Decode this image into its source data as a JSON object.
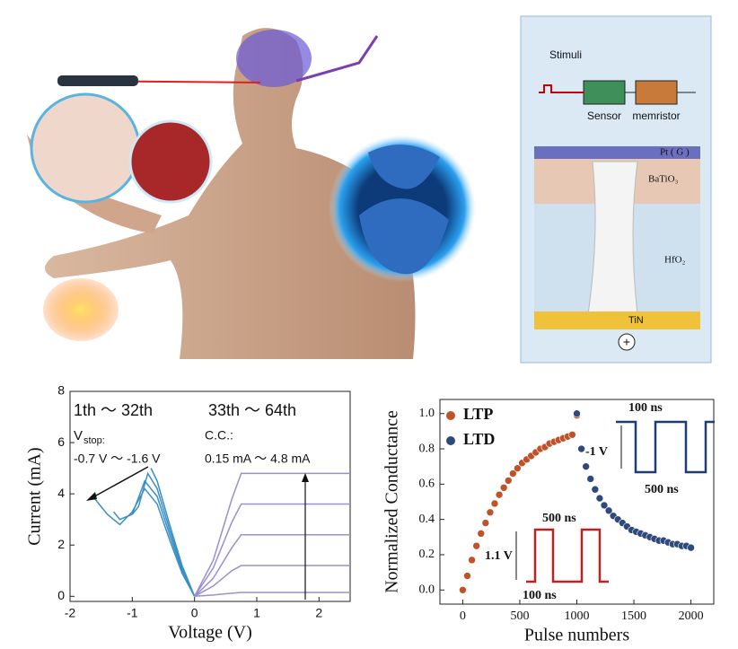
{
  "illustration": {
    "stimuli": "Stimuli",
    "sensor": "Sensor",
    "memristor": "memristor",
    "top_electrode": "Pt ( G )",
    "layer1": "BaTiO₃",
    "layer2": "HfO₂",
    "bottom_electrode": "TiN",
    "polarity": "+"
  },
  "chart_data": [
    {
      "type": "line",
      "xlabel": "Voltage (V)",
      "ylabel": "Current (mA)",
      "xlim": [
        -2,
        2.5
      ],
      "xticks": [
        -2,
        -1,
        0,
        1,
        2
      ],
      "ylim": [
        -0.2,
        8
      ],
      "yticks": [
        0,
        2,
        4,
        6,
        8
      ],
      "annotations": [
        "1th ～ 32th",
        "33th ～ 64th",
        "V",
        "stop:",
        "-0.7 V ～ -1.6 V",
        "C.C.:",
        "0.15 mA ～ 4.8 mA"
      ],
      "series": [
        {
          "color": "#3a8fc4",
          "x": [
            0,
            -0.2,
            -0.4,
            -0.6,
            -0.7
          ],
          "values": [
            0,
            1.2,
            2.8,
            4.5,
            5.0
          ]
        },
        {
          "color": "#3a8fc4",
          "x": [
            0,
            -0.2,
            -0.4,
            -0.6,
            -0.75,
            -0.9,
            -1.0
          ],
          "values": [
            0,
            1.1,
            2.6,
            4.2,
            4.8,
            3.5,
            3.2
          ]
        },
        {
          "color": "#3a8fc4",
          "x": [
            0,
            -0.2,
            -0.4,
            -0.6,
            -0.8,
            -1.0,
            -1.2,
            -1.3
          ],
          "values": [
            0,
            1.0,
            2.4,
            3.9,
            4.5,
            3.2,
            3.0,
            3.3
          ]
        },
        {
          "color": "#3a8fc4",
          "x": [
            0,
            -0.2,
            -0.4,
            -0.6,
            -0.8,
            -1.0,
            -1.2,
            -1.4,
            -1.6
          ],
          "values": [
            0,
            0.9,
            2.2,
            3.6,
            4.2,
            3.3,
            2.8,
            3.2,
            3.8
          ]
        },
        {
          "color": "#9b8fd0",
          "x": [
            0,
            0.3,
            0.6,
            0.75,
            2.5
          ],
          "values": [
            0,
            1.4,
            3.8,
            4.8,
            4.8
          ]
        },
        {
          "color": "#9b8fd0",
          "x": [
            0,
            0.3,
            0.6,
            0.75,
            2.5
          ],
          "values": [
            0,
            1.1,
            2.9,
            3.6,
            3.6
          ]
        },
        {
          "color": "#9b8fd0",
          "x": [
            0,
            0.3,
            0.6,
            0.75,
            2.5
          ],
          "values": [
            0,
            0.7,
            1.9,
            2.4,
            2.4
          ]
        },
        {
          "color": "#9b8fd0",
          "x": [
            0,
            0.3,
            0.6,
            0.75,
            2.5
          ],
          "values": [
            0,
            0.4,
            1.0,
            1.2,
            1.2
          ]
        },
        {
          "color": "#9b8fd0",
          "x": [
            0,
            0.3,
            0.6,
            0.75,
            2.5
          ],
          "values": [
            0,
            0.05,
            0.12,
            0.15,
            0.15
          ]
        }
      ]
    },
    {
      "type": "scatter",
      "xlabel": "Pulse numbers",
      "ylabel": "Normalized Conductance",
      "legend": "upper left",
      "xlim": [
        -200,
        2200
      ],
      "xticks": [
        0,
        500,
        1000,
        1500,
        2000
      ],
      "ylim": [
        -0.08,
        1.08
      ],
      "yticks": [
        {
          "value": 0,
          "label": "0.0"
        },
        0.2,
        0.4,
        0.6,
        0.8,
        {
          "value": 1,
          "label": "1.0"
        }
      ],
      "annotations": [
        "100 ns",
        "-1 V",
        "500 ns",
        "500 ns",
        "1.1 V",
        "100 ns"
      ],
      "series": [
        {
          "name": "LTP",
          "color": "#c0522a",
          "x": [
            0,
            40,
            80,
            120,
            160,
            200,
            240,
            280,
            320,
            360,
            400,
            440,
            480,
            520,
            560,
            600,
            640,
            680,
            720,
            760,
            800,
            840,
            880,
            920,
            960,
            1000
          ],
          "values": [
            0,
            0.08,
            0.17,
            0.25,
            0.32,
            0.38,
            0.44,
            0.49,
            0.54,
            0.58,
            0.62,
            0.66,
            0.69,
            0.72,
            0.74,
            0.76,
            0.78,
            0.8,
            0.81,
            0.83,
            0.84,
            0.85,
            0.86,
            0.87,
            0.88,
            0.99
          ]
        },
        {
          "name": "LTD",
          "color": "#2e4a7d",
          "x": [
            1000,
            1040,
            1080,
            1120,
            1160,
            1200,
            1240,
            1280,
            1320,
            1360,
            1400,
            1440,
            1480,
            1520,
            1560,
            1600,
            1640,
            1680,
            1720,
            1760,
            1800,
            1840,
            1880,
            1920,
            1960,
            2000
          ],
          "values": [
            1.0,
            0.8,
            0.7,
            0.63,
            0.57,
            0.52,
            0.48,
            0.45,
            0.42,
            0.4,
            0.38,
            0.36,
            0.34,
            0.33,
            0.32,
            0.31,
            0.3,
            0.29,
            0.28,
            0.28,
            0.27,
            0.26,
            0.26,
            0.25,
            0.25,
            0.24
          ]
        }
      ]
    }
  ]
}
